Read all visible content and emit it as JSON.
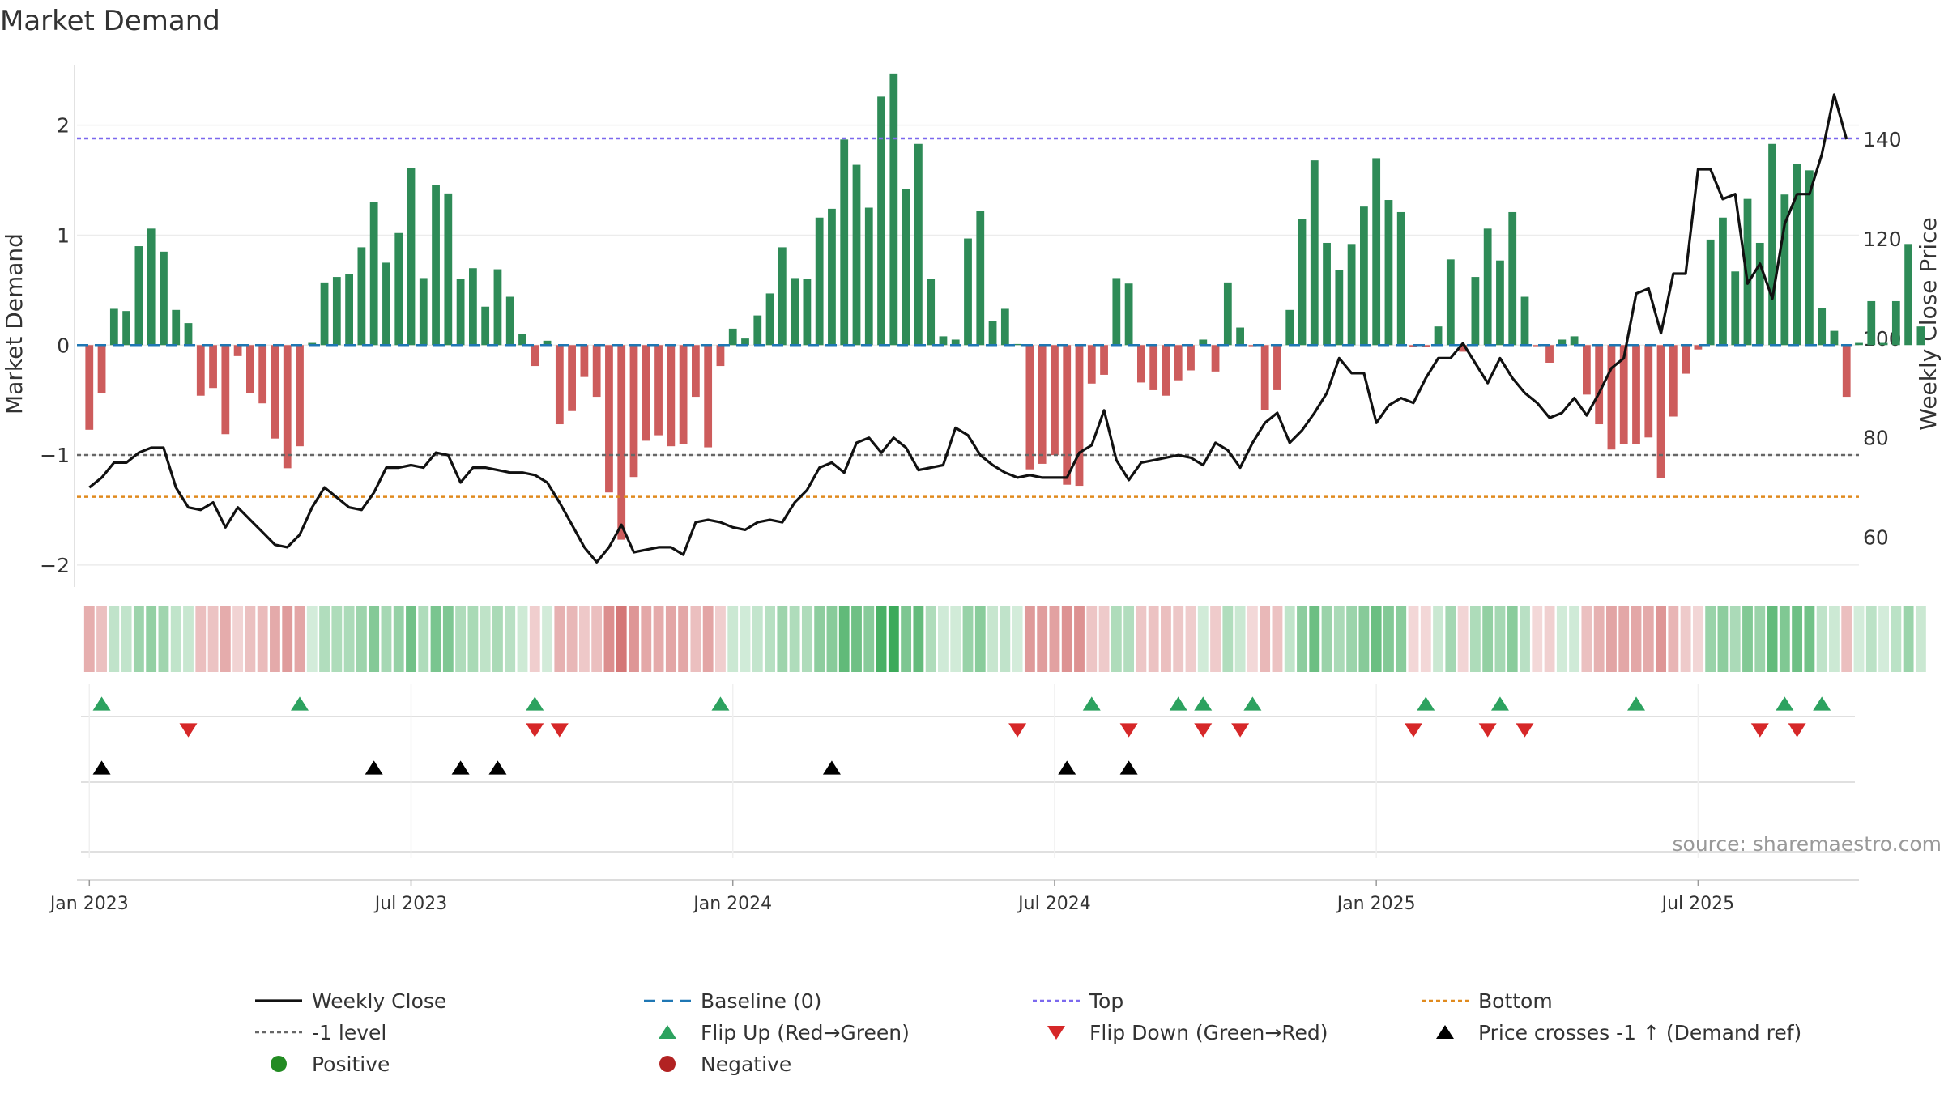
{
  "chart_data": {
    "type": "bar",
    "title": "Market Demand",
    "ylabel": "Market Demand",
    "y2label": "Weekly Close Price",
    "ylim": [
      -2.2,
      2.55
    ],
    "y2lim": [
      50,
      155
    ],
    "yticks": [
      -2,
      -1,
      0,
      1,
      2
    ],
    "y2ticks": [
      60,
      80,
      100,
      120,
      140
    ],
    "ytick_labels": [
      "−2",
      "−1",
      "0",
      "1",
      "2"
    ],
    "y2tick_labels": [
      "60",
      "80",
      "100",
      "120",
      "140"
    ],
    "x_start_index": -1,
    "x_end_index": 143,
    "xtick_positions": [
      0,
      26,
      52,
      78,
      104,
      130
    ],
    "xtick_labels": [
      "Jan 2023",
      "Jul 2023",
      "Jan 2024",
      "Jul 2024",
      "Jan 2025",
      "Jul 2025"
    ],
    "reference_lines": {
      "top": 1.88,
      "minus_one": -1.0,
      "bottom": -1.38,
      "baseline": 0.0
    },
    "demand": [
      -0.77,
      -0.44,
      0.33,
      0.31,
      0.9,
      1.06,
      0.85,
      0.32,
      0.2,
      -0.46,
      -0.39,
      -0.81,
      -0.1,
      -0.44,
      -0.53,
      -0.85,
      -1.12,
      -0.92,
      0.02,
      0.57,
      0.62,
      0.65,
      0.89,
      1.3,
      0.75,
      1.02,
      1.61,
      0.61,
      1.46,
      1.38,
      0.6,
      0.7,
      0.35,
      0.69,
      0.44,
      0.1,
      -0.19,
      0.04,
      -0.72,
      -0.6,
      -0.29,
      -0.47,
      -1.34,
      -1.77,
      -1.2,
      -0.87,
      -0.82,
      -0.92,
      -0.9,
      -0.47,
      -0.93,
      -0.19,
      0.15,
      0.06,
      0.27,
      0.47,
      0.89,
      0.61,
      0.6,
      1.16,
      1.24,
      1.87,
      1.64,
      1.25,
      2.26,
      2.47,
      1.42,
      1.83,
      0.6,
      0.08,
      0.05,
      0.97,
      1.22,
      0.22,
      0.33,
      0.01,
      -1.13,
      -1.08,
      -1.0,
      -1.27,
      -1.28,
      -0.35,
      -0.27,
      0.61,
      0.56,
      -0.34,
      -0.41,
      -0.46,
      -0.32,
      -0.23,
      0.05,
      -0.24,
      0.57,
      0.16,
      -0.01,
      -0.59,
      -0.41,
      0.32,
      1.15,
      1.68,
      0.93,
      0.68,
      0.92,
      1.26,
      1.7,
      1.32,
      1.21,
      -0.02,
      -0.02,
      0.17,
      0.78,
      -0.06,
      0.62,
      1.06,
      0.77,
      1.21,
      0.44,
      -0.01,
      -0.16,
      0.05,
      0.08,
      -0.45,
      -0.72,
      -0.95,
      -0.9,
      -0.9,
      -0.84,
      -1.21,
      -0.65,
      -0.26,
      -0.04,
      0.96,
      1.16,
      0.67,
      1.33,
      0.93,
      1.83,
      1.37,
      1.65,
      1.59,
      0.34,
      0.13,
      -0.47,
      0.02,
      0.4,
      0.02,
      0.4,
      0.92,
      0.17
    ],
    "price": [
      70,
      72,
      75,
      75,
      77,
      78,
      78,
      70,
      66,
      65.5,
      67,
      62,
      66,
      63.5,
      61,
      58.5,
      58,
      60.5,
      66,
      70,
      68,
      66,
      65.5,
      69,
      74,
      74,
      74.5,
      74,
      77,
      76.5,
      71,
      74,
      74,
      73.5,
      73,
      73,
      72.5,
      71,
      67,
      62.5,
      58,
      55,
      58,
      62.5,
      57,
      57.5,
      58,
      58,
      56.5,
      63,
      63.5,
      63,
      62,
      61.5,
      63,
      63.5,
      63,
      67,
      69.5,
      74,
      75,
      73,
      79,
      80,
      77,
      80,
      78,
      73.5,
      74,
      74.5,
      82,
      80.5,
      76.5,
      74.5,
      73,
      72,
      72.5,
      72,
      72,
      72,
      77,
      78.5,
      85.5,
      75.5,
      71.5,
      75,
      75.5,
      76,
      76.5,
      76,
      74.5,
      79,
      77.5,
      74,
      79,
      83,
      85,
      79,
      81.5,
      85,
      89,
      96,
      93,
      93,
      83,
      86.5,
      88,
      87,
      92,
      96,
      96,
      99,
      95,
      91,
      96,
      92,
      89,
      87,
      84,
      85,
      88,
      84.5,
      89,
      94,
      96,
      109,
      110,
      101,
      113,
      113,
      134,
      134,
      128,
      129,
      111,
      115,
      108,
      123,
      129,
      129,
      137,
      149,
      140
    ],
    "flip_up": [
      1,
      17,
      36,
      51,
      81,
      88,
      90,
      94,
      108,
      114,
      125,
      137,
      140
    ],
    "flip_down": [
      8,
      36,
      38,
      75,
      84,
      90,
      93,
      107,
      113,
      116,
      135,
      138
    ],
    "price_cross": [
      1,
      23,
      30,
      33,
      60,
      79,
      84
    ],
    "source": "source: sharemaestro.com",
    "legend": [
      {
        "label": "Weekly Close",
        "marker": "line-black"
      },
      {
        "label": "Baseline (0)",
        "marker": "dash-blue"
      },
      {
        "label": "Top",
        "marker": "dot-purple"
      },
      {
        "label": "Bottom",
        "marker": "dot-orange"
      },
      {
        "label": "-1 level",
        "marker": "dot-grey"
      },
      {
        "label": "Flip Up (Red→Green)",
        "marker": "triangle-up-green"
      },
      {
        "label": "Flip Down (Green→Red)",
        "marker": "triangle-down-red"
      },
      {
        "label": "Price crosses -1 ↑ (Demand ref)",
        "marker": "triangle-up-black"
      },
      {
        "label": "Positive",
        "marker": "circle-green"
      },
      {
        "label": "Negative",
        "marker": "circle-red"
      }
    ],
    "colors": {
      "positive": "#2e8b57",
      "negative": "#cd5c5c",
      "price": "#111111",
      "top": "#7b68ee",
      "bottom": "#e08a1e",
      "minus_one": "#666666",
      "baseline": "#1f77b4",
      "flip_up": "#2ca25f",
      "flip_down": "#d62728",
      "cross": "#000000",
      "legend_positive": "#228b22",
      "legend_negative": "#b22222"
    }
  }
}
